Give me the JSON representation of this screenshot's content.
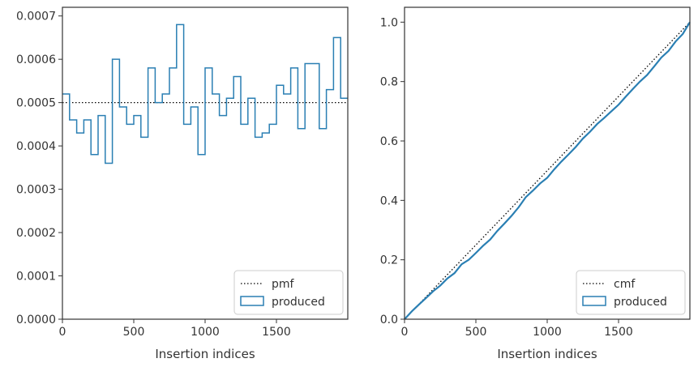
{
  "chart_data": [
    {
      "type": "histogram-step",
      "xlabel": "Insertion indices",
      "ylabel": "",
      "xlim": [
        0,
        2000
      ],
      "ylim": [
        0,
        0.00072
      ],
      "xticks": [
        "0",
        "500",
        "1000",
        "1500"
      ],
      "yticks": [
        "0.0000",
        "0.0001",
        "0.0002",
        "0.0003",
        "0.0004",
        "0.0005",
        "0.0006",
        "0.0007"
      ],
      "reference_line": {
        "name": "pmf",
        "y": 0.0005,
        "style": "dotted",
        "color": "#000000"
      },
      "series": [
        {
          "name": "produced",
          "color": "#2a7fb3",
          "bin_edges": [
            0,
            50,
            100,
            150,
            200,
            250,
            300,
            350,
            400,
            450,
            500,
            550,
            600,
            650,
            700,
            750,
            800,
            850,
            900,
            950,
            1000,
            1050,
            1100,
            1150,
            1200,
            1250,
            1300,
            1350,
            1400,
            1450,
            1500,
            1550,
            1600,
            1650,
            1700,
            1800,
            1850,
            1900,
            1950,
            2000
          ],
          "values": [
            0.00052,
            0.00046,
            0.00043,
            0.00046,
            0.00038,
            0.00047,
            0.00036,
            0.0006,
            0.00049,
            0.00045,
            0.00047,
            0.00042,
            0.00058,
            0.0005,
            0.00052,
            0.00058,
            0.00068,
            0.00045,
            0.00049,
            0.00038,
            0.00058,
            0.00052,
            0.00047,
            0.00051,
            0.00056,
            0.00045,
            0.00051,
            0.00042,
            0.00043,
            0.00045,
            0.00054,
            0.00052,
            0.00058,
            0.00044,
            0.00059,
            0.00044,
            0.00053,
            0.00065,
            0.00051
          ]
        }
      ],
      "legend": {
        "position": "lower-right",
        "entries": [
          "pmf",
          "produced"
        ]
      }
    },
    {
      "type": "line",
      "xlabel": "Insertion indices",
      "ylabel": "",
      "xlim": [
        0,
        2000
      ],
      "ylim": [
        0,
        1.05
      ],
      "xticks": [
        "0",
        "500",
        "1000",
        "1500"
      ],
      "yticks": [
        "0.0",
        "0.2",
        "0.4",
        "0.6",
        "0.8",
        "1.0"
      ],
      "reference_line": {
        "name": "cmf",
        "x": [
          0,
          2000
        ],
        "y": [
          0,
          1.0
        ],
        "style": "dotted",
        "color": "#000000"
      },
      "series": [
        {
          "name": "produced",
          "color": "#2a7fb3",
          "x": [
            0,
            50,
            100,
            150,
            200,
            250,
            300,
            350,
            400,
            450,
            500,
            550,
            600,
            650,
            700,
            750,
            800,
            850,
            900,
            950,
            1000,
            1050,
            1100,
            1150,
            1200,
            1250,
            1300,
            1350,
            1400,
            1450,
            1500,
            1550,
            1600,
            1650,
            1700,
            1750,
            1800,
            1850,
            1900,
            1950,
            2000
          ],
          "y": [
            0,
            0.026,
            0.049,
            0.071,
            0.094,
            0.113,
            0.137,
            0.155,
            0.185,
            0.2,
            0.223,
            0.247,
            0.268,
            0.297,
            0.322,
            0.348,
            0.377,
            0.411,
            0.433,
            0.457,
            0.476,
            0.505,
            0.531,
            0.555,
            0.58,
            0.608,
            0.631,
            0.657,
            0.678,
            0.7,
            0.722,
            0.749,
            0.775,
            0.8,
            0.822,
            0.851,
            0.881,
            0.903,
            0.935,
            0.96,
            1.0
          ]
        }
      ],
      "legend": {
        "position": "lower-right",
        "entries": [
          "cmf",
          "produced"
        ]
      }
    }
  ]
}
